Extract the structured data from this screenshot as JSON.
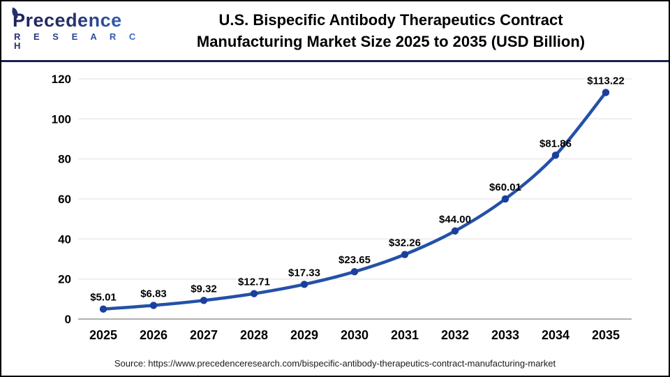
{
  "logo": {
    "brand_top": "Precedence",
    "brand_bottom": "R E S E A R C H",
    "navy": "#262e6d",
    "blue": "#3a75dc"
  },
  "header": {
    "title_line1": "U.S. Bispecific Antibody Therapeutics Contract",
    "title_line2": "Manufacturing Market Size 2025 to 2035 (USD Billion)"
  },
  "chart_data": {
    "type": "line",
    "title": "U.S. Bispecific Antibody Therapeutics Contract Manufacturing Market Size 2025 to 2035 (USD Billion)",
    "categories": [
      "2025",
      "2026",
      "2027",
      "2028",
      "2029",
      "2030",
      "2031",
      "2032",
      "2033",
      "2034",
      "2035"
    ],
    "values": [
      5.01,
      6.83,
      9.32,
      12.71,
      17.33,
      23.65,
      32.26,
      44.0,
      60.01,
      81.86,
      113.22
    ],
    "point_labels": [
      "$5.01",
      "$6.83",
      "$9.32",
      "$12.71",
      "$17.33",
      "$23.65",
      "$32.26",
      "$44.00",
      "$60.01",
      "$81.86",
      "$113.22"
    ],
    "xlabel": "",
    "ylabel": "",
    "ylim": [
      0,
      120
    ],
    "yticks": [
      0,
      20,
      40,
      60,
      80,
      100,
      120
    ],
    "grid": true,
    "legend": "none",
    "line_color": "#2351a8",
    "marker_color": "#1c3f9c",
    "grid_color": "#e8e8e8",
    "axis_color": "#b0b0b0",
    "label_color": "#000000"
  },
  "footer": {
    "source": "Source: https://www.precedenceresearch.com/bispecific-antibody-therapeutics-contract-manufacturing-market"
  }
}
